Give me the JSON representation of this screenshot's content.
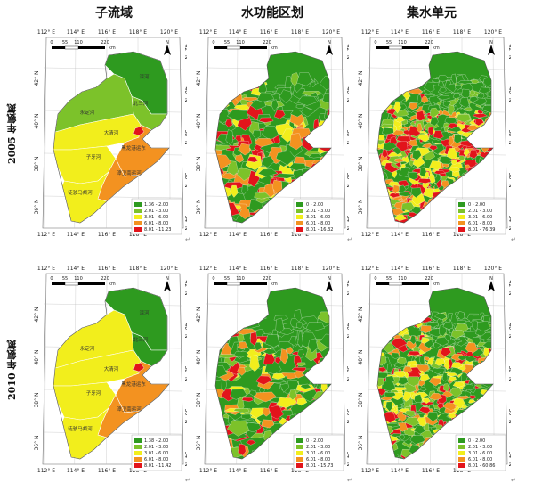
{
  "columns": [
    "子流域",
    "水功能区划",
    "集水单元"
  ],
  "rows": [
    "2005 年氨氮",
    "2010 年氨氮"
  ],
  "mark": "↵",
  "axis": {
    "top_labels": [
      "112° E",
      "114° E",
      "116° E",
      "118° E",
      "120° E"
    ],
    "bottom_labels": [
      "112° E",
      "114° E",
      "116° E",
      "118° E"
    ],
    "right_labels": [
      "42° N",
      "40° N",
      "38° N",
      "36° N",
      "34° N"
    ],
    "left_labels": [
      "42° N",
      "40° N",
      "38° N",
      "36° N"
    ]
  },
  "scale": {
    "ticks": [
      "0",
      "55",
      "110",
      "220"
    ],
    "unit": "km"
  },
  "north": "N",
  "subbasin_labels": [
    "滦河",
    "北三河",
    "永定河",
    "大清河",
    "子牙河",
    "黑龙港运东",
    "漳卫南运河",
    "徒骇马颊河"
  ],
  "colors": {
    "c1": "#2e9a1f",
    "c2": "#7cc22a",
    "c3": "#f2ee1c",
    "c4": "#f39220",
    "c5": "#e2141b"
  },
  "legends": {
    "p2005_sub": [
      "1.36 - 2.00",
      "2.01 - 3.00",
      "3.01 - 6.00",
      "6.01 - 8.00",
      "8.01 - 11.23"
    ],
    "p2005_func": [
      "0 - 2.00",
      "2.01 - 3.00",
      "3.01 - 6.00",
      "6.01 - 8.00",
      "8.01 - 16.32"
    ],
    "p2005_unit": [
      "0 - 2.00",
      "2.01 - 3.00",
      "3.01 - 6.00",
      "6.01 - 8.00",
      "8.01 - 76.39"
    ],
    "p2010_sub": [
      "1.38 - 2.00",
      "2.01 - 3.00",
      "3.01 - 6.00",
      "6.01 - 8.00",
      "8.01 - 11.42"
    ],
    "p2010_func": [
      "0 - 2.00",
      "2.01 - 3.00",
      "3.01 - 6.00",
      "6.01 - 8.00",
      "8.01 - 15.73"
    ],
    "p2010_unit": [
      "0 - 2.00",
      "2.01 - 3.00",
      "3.01 - 6.00",
      "6.01 - 8.00",
      "8.01 - 60.86"
    ]
  }
}
